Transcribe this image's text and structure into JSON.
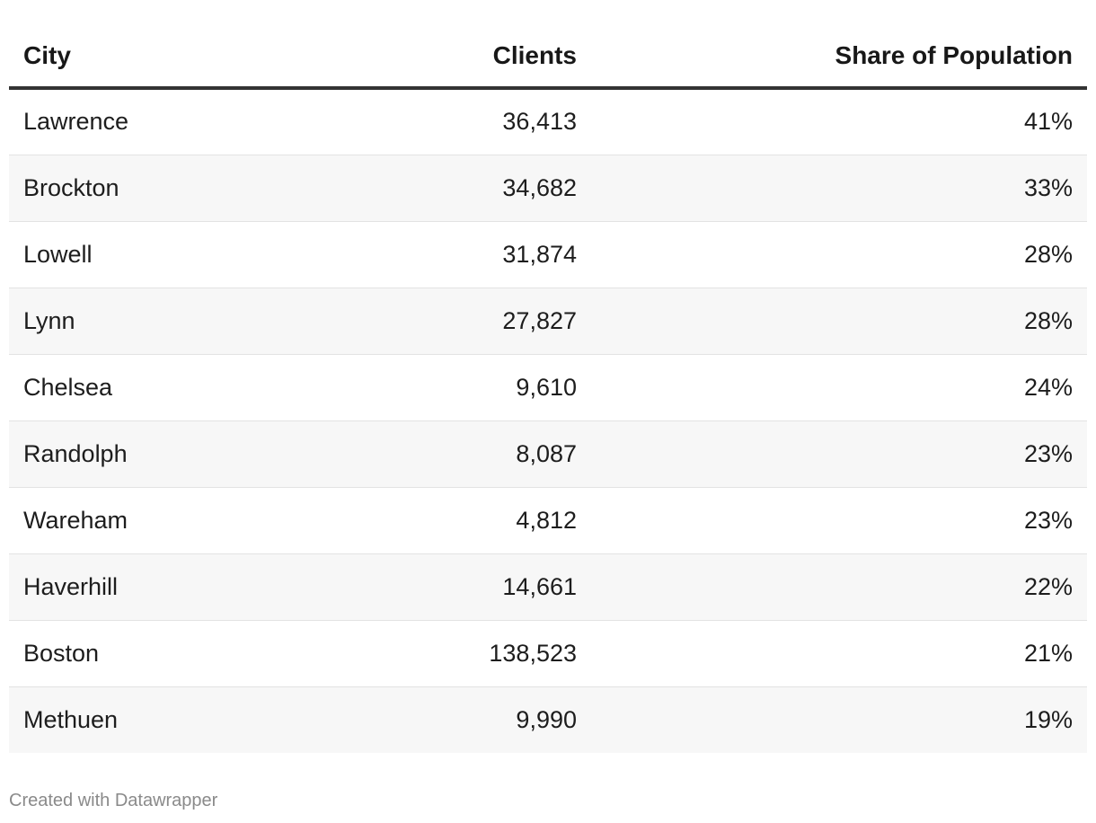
{
  "chart_data": {
    "type": "table",
    "columns": [
      "City",
      "Clients",
      "Share of Population"
    ],
    "rows": [
      {
        "city": "Lawrence",
        "clients": "36,413",
        "share": "41%"
      },
      {
        "city": "Brockton",
        "clients": "34,682",
        "share": "33%"
      },
      {
        "city": "Lowell",
        "clients": "31,874",
        "share": "28%"
      },
      {
        "city": "Lynn",
        "clients": "27,827",
        "share": "28%"
      },
      {
        "city": "Chelsea",
        "clients": "9,610",
        "share": "24%"
      },
      {
        "city": "Randolph",
        "clients": "8,087",
        "share": "23%"
      },
      {
        "city": "Wareham",
        "clients": "4,812",
        "share": "23%"
      },
      {
        "city": "Haverhill",
        "clients": "14,661",
        "share": "22%"
      },
      {
        "city": "Boston",
        "clients": "138,523",
        "share": "21%"
      },
      {
        "city": "Methuen",
        "clients": "9,990",
        "share": "19%"
      }
    ]
  },
  "footer": {
    "credit": "Created with Datawrapper"
  },
  "colors": {
    "header_rule": "#333333",
    "row_stripe": "#f7f7f7",
    "row_divider": "#e3e3e3",
    "footer_text": "#8a8a8a"
  }
}
